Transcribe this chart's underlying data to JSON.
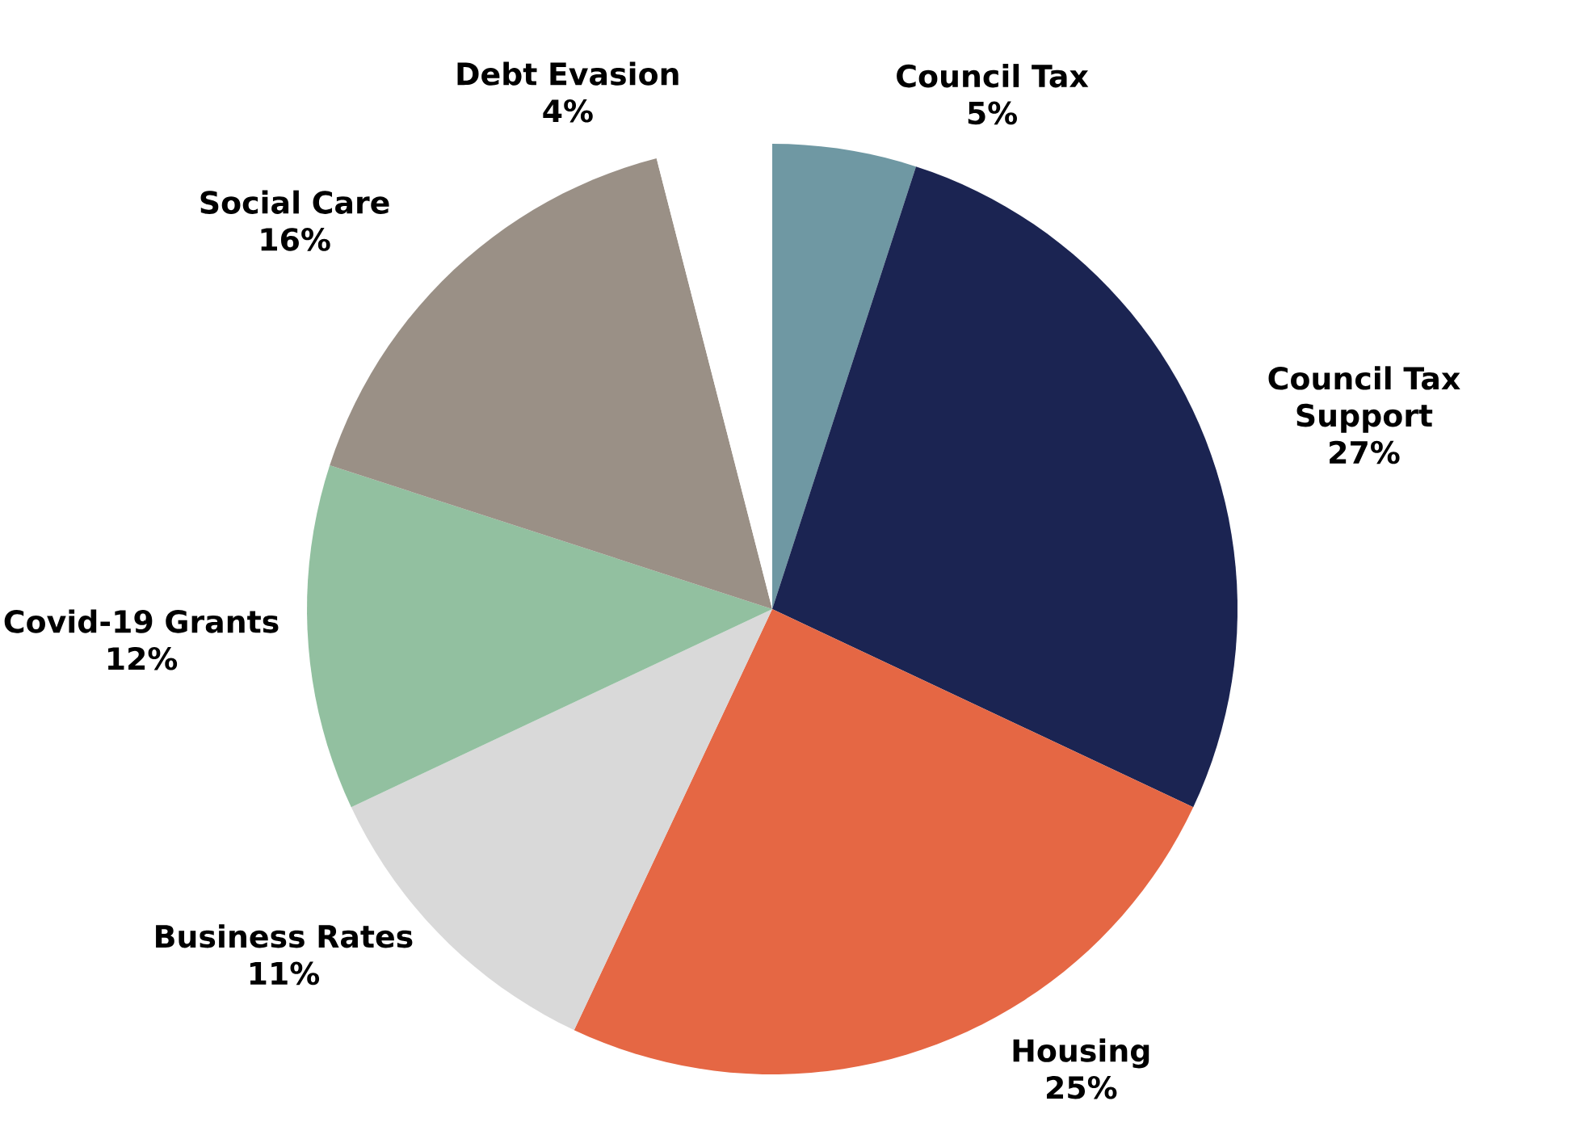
{
  "chart_data": {
    "type": "pie",
    "categories": [
      "Council Tax",
      "Council Tax Support",
      "Housing",
      "Business Rates",
      "Covid-19 Grants",
      "Social Care",
      "Debt Evasion"
    ],
    "values": [
      5,
      27,
      25,
      11,
      12,
      16,
      4
    ],
    "colors": [
      "#6f98a3",
      "#1b2452",
      "#e56744",
      "#d9d9d9",
      "#92c0a0",
      "#9a9086",
      "#ffffff"
    ],
    "value_labels": [
      "5%",
      "27%",
      "25%",
      "11%",
      "12%",
      "16%",
      "4%"
    ]
  }
}
